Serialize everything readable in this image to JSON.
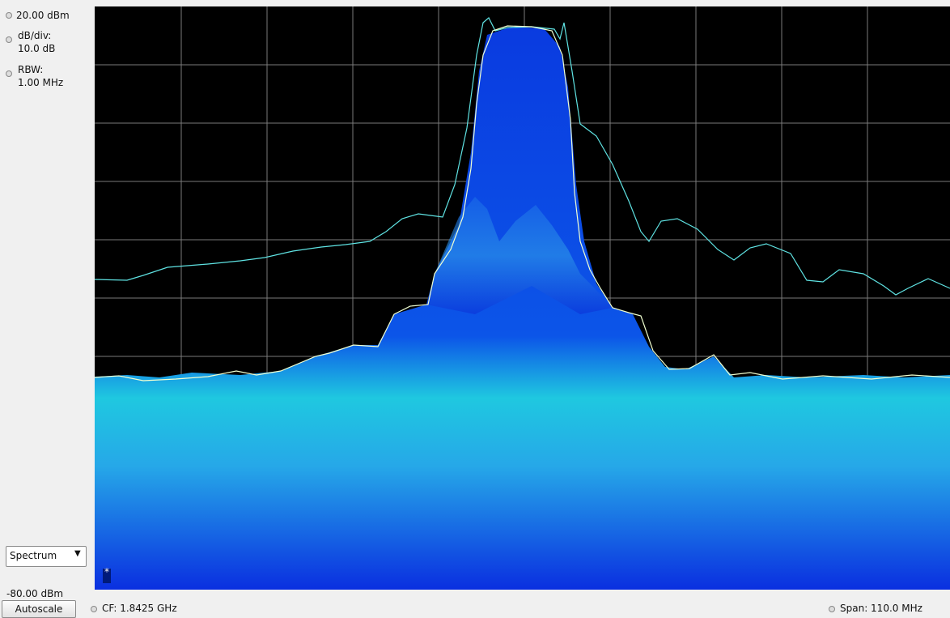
{
  "readouts": {
    "ref_level": "20.00 dBm",
    "scale_label": "dB/div:",
    "scale_value": "10.0 dB",
    "rbw_label": "RBW:",
    "rbw_value": "1.00 MHz",
    "bottom_level": "-80.00 dBm"
  },
  "controls": {
    "view": "Spectrum",
    "autoscale": "Autoscale"
  },
  "footer": {
    "center_frequency": "CF: 1.8425 GHz",
    "span": "Span: 110.0 MHz"
  },
  "marker": "*"
}
